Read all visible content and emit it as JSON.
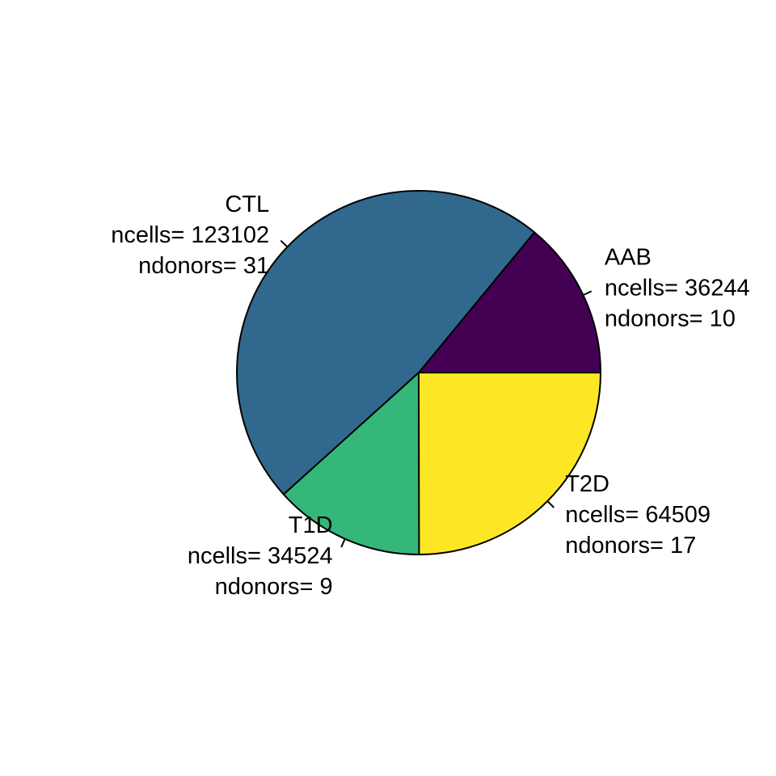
{
  "chart_data": {
    "type": "pie",
    "start_angle_deg": 0,
    "direction": "counterclockwise",
    "slices": [
      {
        "category": "AAB",
        "ncells": 36244,
        "ndonors": 10,
        "color": "#440154",
        "label_lines": [
          "AAB",
          "ncells= 36244",
          "ndonors= 10"
        ]
      },
      {
        "category": "CTL",
        "ncells": 123102,
        "ndonors": 31,
        "color": "#31688E",
        "label_lines": [
          "CTL",
          "ncells= 123102",
          "ndonors= 31"
        ]
      },
      {
        "category": "T1D",
        "ncells": 34524,
        "ndonors": 9,
        "color": "#35B779",
        "label_lines": [
          "T1D",
          "ncells= 34524",
          "ndonors= 9"
        ]
      },
      {
        "category": "T2D",
        "ncells": 64509,
        "ndonors": 17,
        "color": "#FDE725",
        "label_lines": [
          "T2D",
          "ncells= 64509",
          "ndonors= 17"
        ]
      }
    ]
  }
}
